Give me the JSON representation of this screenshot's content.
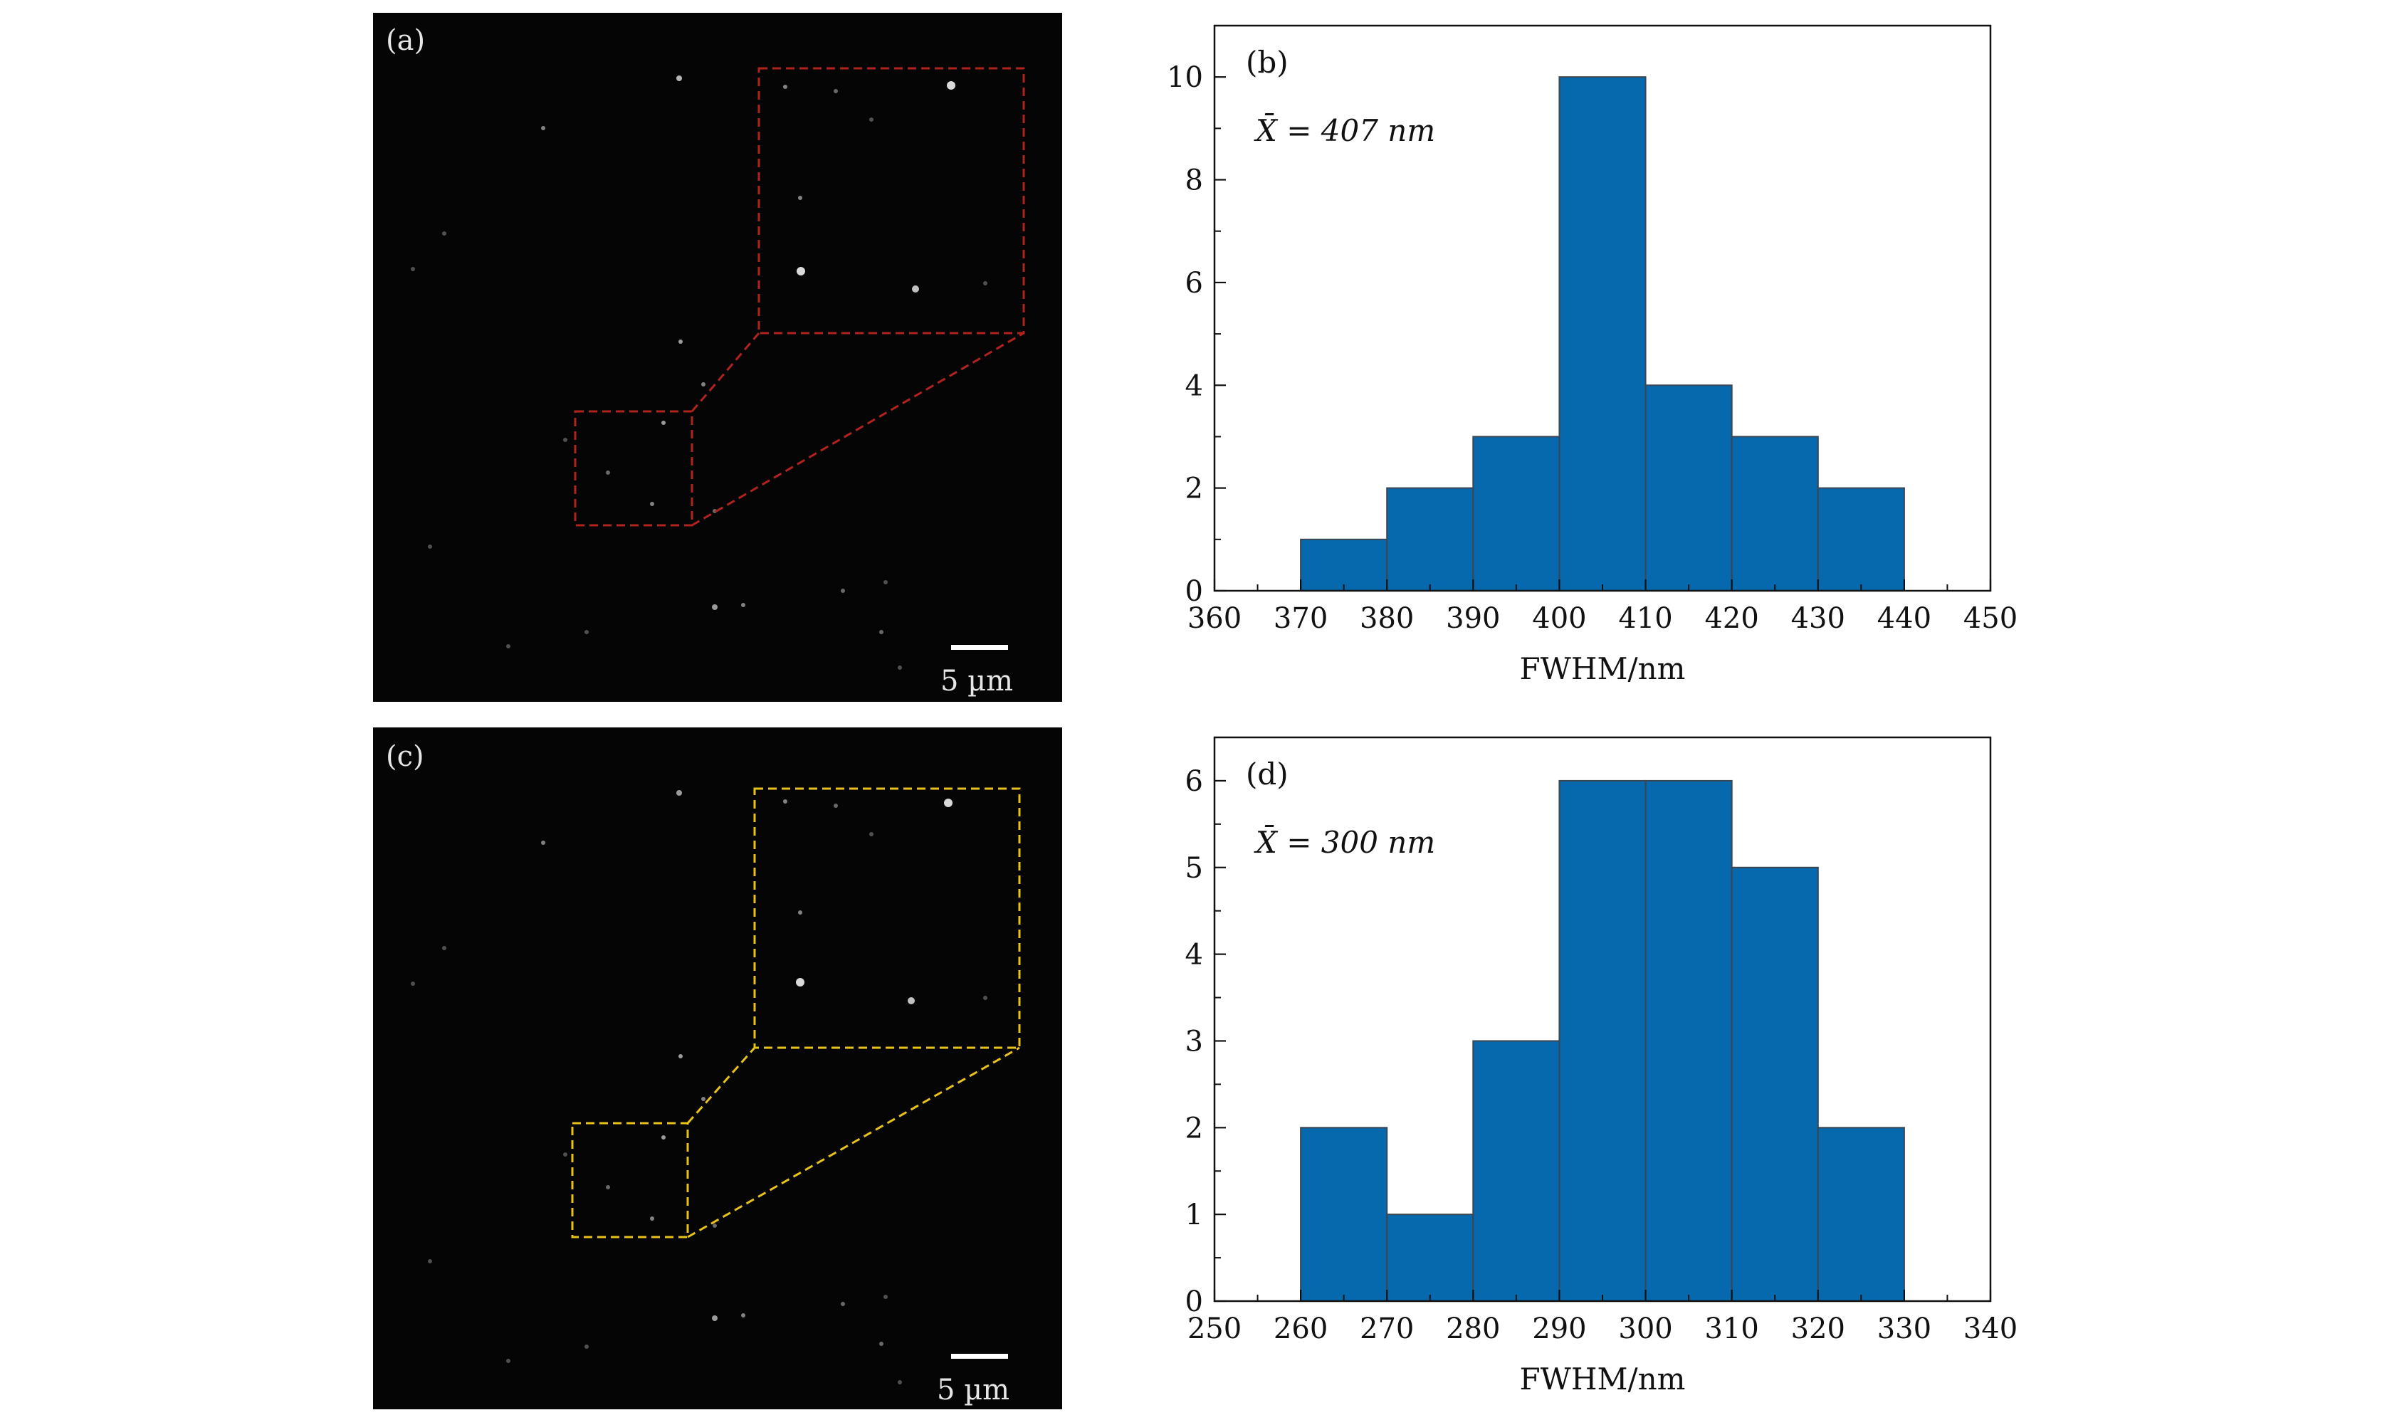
{
  "panels": {
    "a": {
      "label": "(a)",
      "scale_bar": "5 µm",
      "box_color": "#b0221e"
    },
    "c": {
      "label": "(c)",
      "scale_bar": "5 µm",
      "box_color": "#e8c21a"
    }
  },
  "chart_data": [
    {
      "type": "bar",
      "panel_label": "(b)",
      "annotation": "X̄ = 407 nm",
      "xlabel": "FWHM/nm",
      "ylabel": "",
      "bin_edges": [
        370,
        380,
        390,
        400,
        410,
        420,
        430,
        440
      ],
      "values": [
        1,
        2,
        3,
        10,
        4,
        3,
        2
      ],
      "xlim": [
        360,
        450
      ],
      "ylim": [
        0,
        11
      ],
      "xticks": [
        360,
        370,
        380,
        390,
        400,
        410,
        420,
        430,
        440,
        450
      ],
      "yticks": [
        0,
        2,
        4,
        6,
        8,
        10
      ],
      "bar_color": "#0668ad",
      "grid": false
    },
    {
      "type": "bar",
      "panel_label": "(d)",
      "annotation": "X̄ = 300 nm",
      "xlabel": "FWHM/nm",
      "ylabel": "",
      "bin_edges": [
        260,
        270,
        280,
        290,
        300,
        310,
        320,
        330
      ],
      "values": [
        2,
        1,
        3,
        6,
        6,
        5,
        2
      ],
      "xlim": [
        250,
        340
      ],
      "ylim": [
        0,
        6.5
      ],
      "xticks": [
        250,
        260,
        270,
        280,
        290,
        300,
        310,
        320,
        330,
        340
      ],
      "yticks": [
        0,
        1,
        2,
        3,
        4,
        5,
        6
      ],
      "bar_color": "#0668ad",
      "grid": false
    }
  ]
}
